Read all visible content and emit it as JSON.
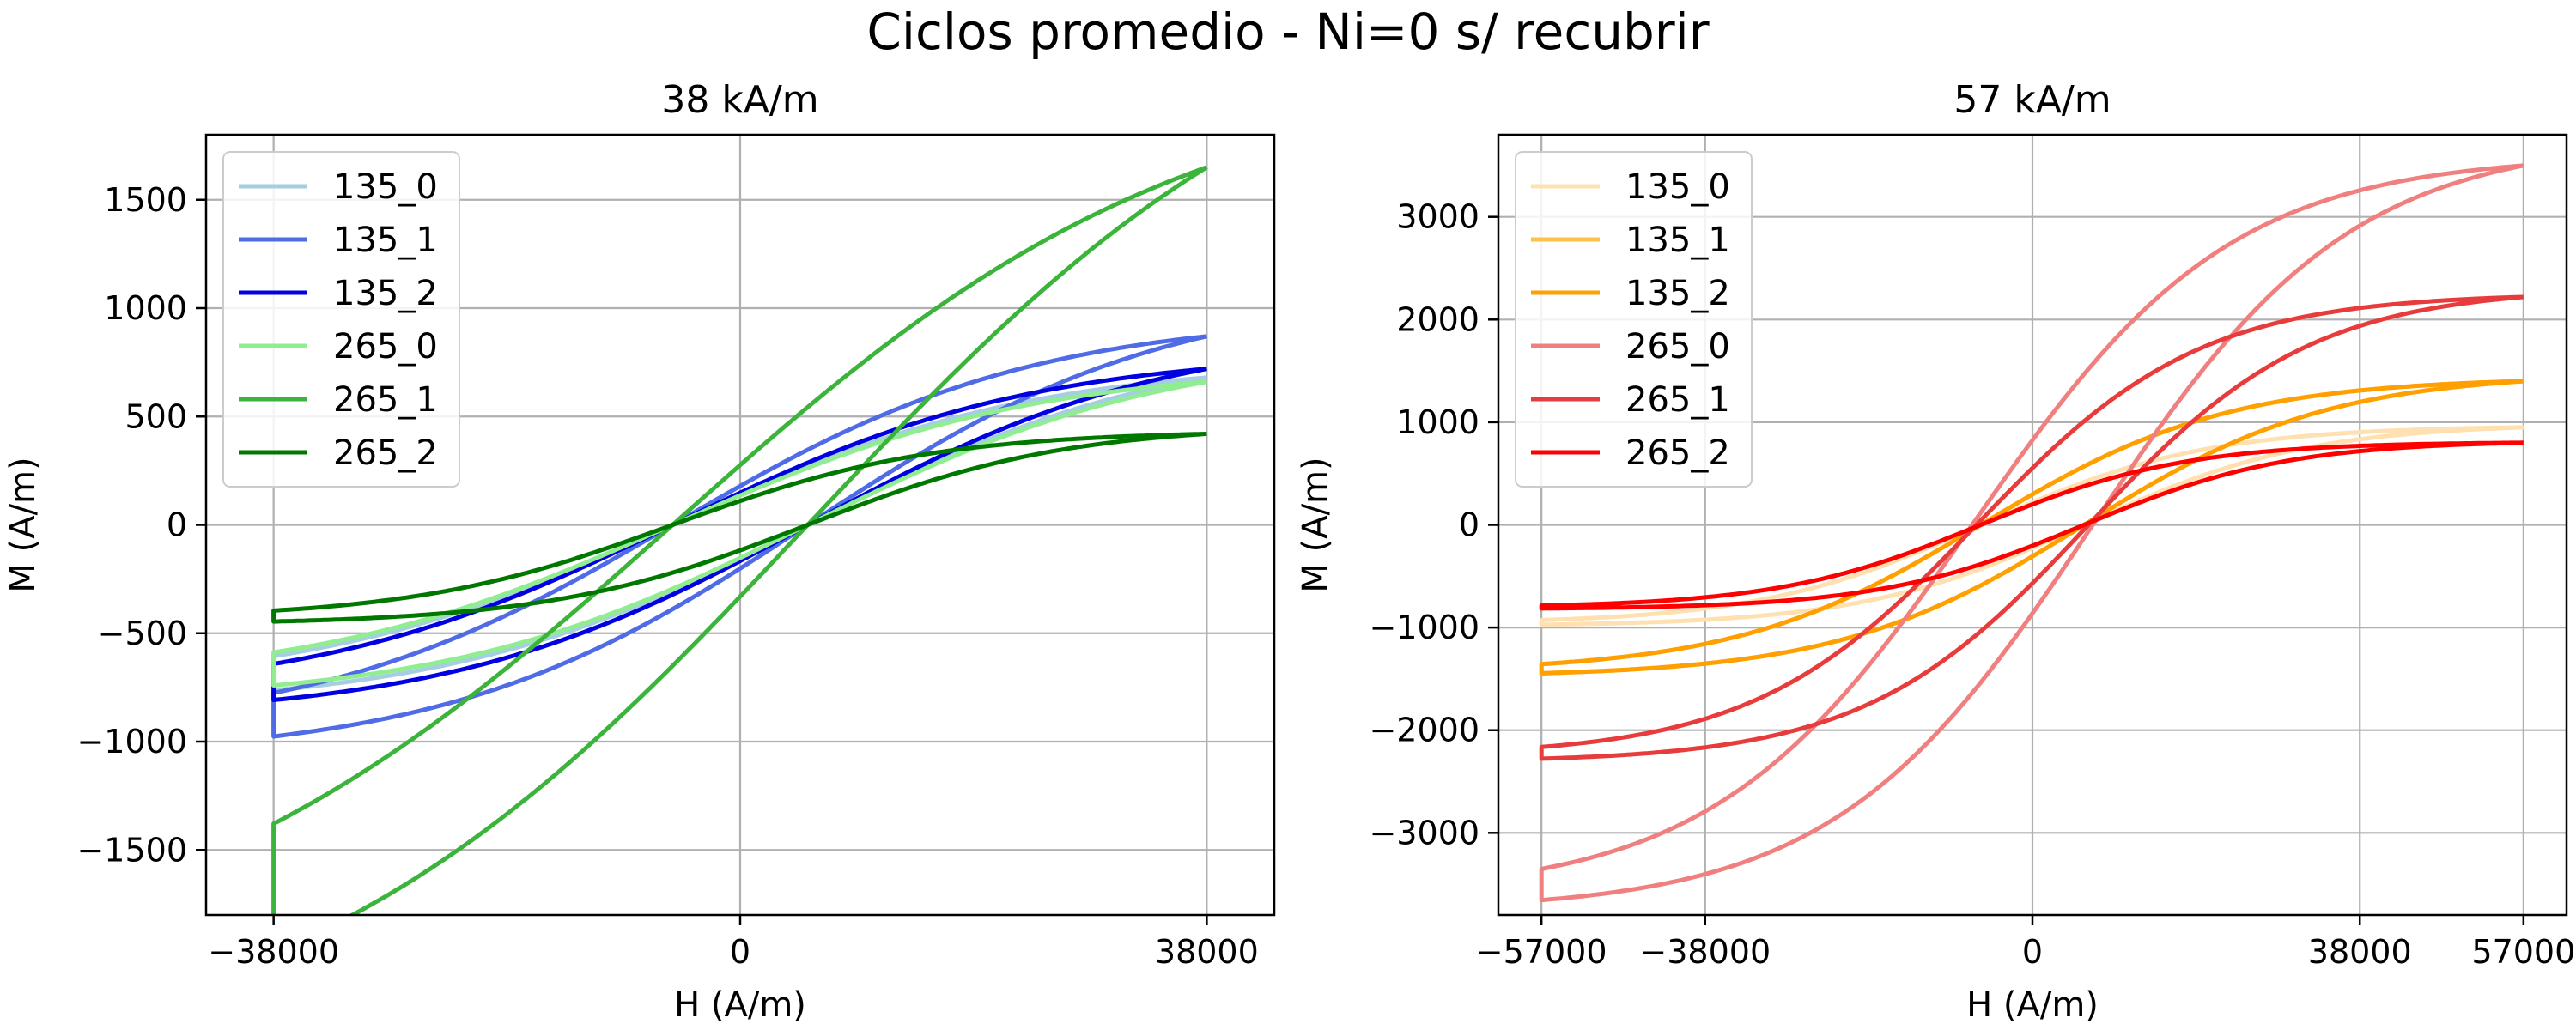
{
  "suptitle": "Ciclos promedio - Ni=0 s/ recubrir",
  "chart_data": [
    {
      "type": "line",
      "title": "38 kA/m",
      "xlabel": "H (A/m)",
      "ylabel": "M (A/m)",
      "xlim": [
        -43500,
        43500
      ],
      "ylim": [
        -1800,
        1800
      ],
      "xticks": [
        -38000,
        0,
        38000
      ],
      "yticks": [
        -1500,
        -1000,
        -500,
        0,
        500,
        1000,
        1500
      ],
      "xtick_labels": [
        "−38000",
        "0",
        "38000"
      ],
      "ytick_labels": [
        "−1500",
        "−1000",
        "−500",
        "0",
        "500",
        "1000",
        "1500"
      ],
      "grid": true,
      "legend_position": "top-left",
      "series": [
        {
          "name": "135_0",
          "color": "#a6cee3",
          "Hmax": 38000,
          "Mmax": 680,
          "Hc": 5500,
          "sharpness": 1.3
        },
        {
          "name": "135_1",
          "color": "#4f6be6",
          "Hmax": 38000,
          "Mmax": 870,
          "Hc": 5500,
          "sharpness": 1.3
        },
        {
          "name": "135_2",
          "color": "#0000e0",
          "Hmax": 38000,
          "Mmax": 720,
          "Hc": 5500,
          "sharpness": 1.3
        },
        {
          "name": "265_0",
          "color": "#90ee90",
          "Hmax": 38000,
          "Mmax": 660,
          "Hc": 5500,
          "sharpness": 1.3
        },
        {
          "name": "265_1",
          "color": "#3cb43c",
          "Hmax": 38000,
          "Mmax": 1650,
          "Hc": 5500,
          "sharpness": 0.9
        },
        {
          "name": "265_2",
          "color": "#007800",
          "Hmax": 38000,
          "Mmax": 420,
          "Hc": 5500,
          "sharpness": 1.8
        }
      ]
    },
    {
      "type": "line",
      "title": "57 kA/m",
      "xlabel": "H (A/m)",
      "ylabel": "M (A/m)",
      "xlim": [
        -62000,
        62000
      ],
      "ylim": [
        -3800,
        3800
      ],
      "xticks": [
        -57000,
        -38000,
        0,
        38000,
        57000
      ],
      "yticks": [
        -3000,
        -2000,
        -1000,
        0,
        1000,
        2000,
        3000
      ],
      "xtick_labels": [
        "−57000",
        "−38000",
        "0",
        "38000",
        "57000"
      ],
      "ytick_labels": [
        "−3000",
        "−2000",
        "−1000",
        "0",
        "1000",
        "2000",
        "3000"
      ],
      "grid": true,
      "legend_position": "top-left",
      "series": [
        {
          "name": "135_0",
          "color": "#ffe0b0",
          "Hmax": 57000,
          "Mmax": 950,
          "Hc": 6000,
          "sharpness": 2.2
        },
        {
          "name": "135_1",
          "color": "#ffc04a",
          "Hmax": 57000,
          "Mmax": 1400,
          "Hc": 6000,
          "sharpness": 2.0
        },
        {
          "name": "135_2",
          "color": "#ffa000",
          "Hmax": 57000,
          "Mmax": 1400,
          "Hc": 6000,
          "sharpness": 2.0
        },
        {
          "name": "265_0",
          "color": "#f08080",
          "Hmax": 57000,
          "Mmax": 3500,
          "Hc": 7000,
          "sharpness": 1.9
        },
        {
          "name": "265_1",
          "color": "#e83c3c",
          "Hmax": 57000,
          "Mmax": 2220,
          "Hc": 6500,
          "sharpness": 2.2
        },
        {
          "name": "265_2",
          "color": "#ff0000",
          "Hmax": 57000,
          "Mmax": 800,
          "Hc": 6000,
          "sharpness": 2.4
        }
      ]
    }
  ]
}
